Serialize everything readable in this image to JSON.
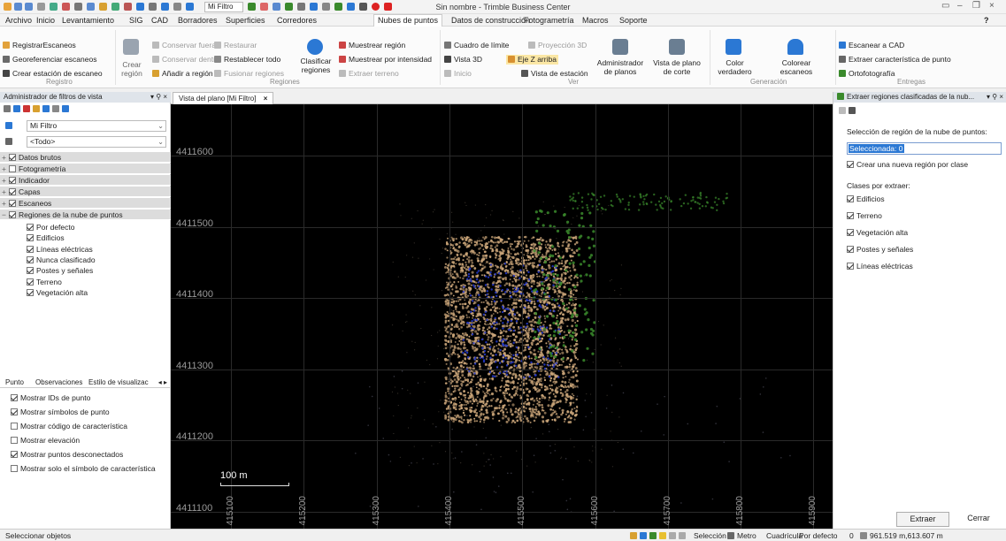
{
  "app": {
    "title": "Sin nombre - Trimble Business Center",
    "qat_filter": "Mi Filtro",
    "help": "?"
  },
  "menu": [
    "Archivo",
    "Inicio",
    "Levantamiento",
    "SIG",
    "CAD",
    "Borradores",
    "Superficies",
    "Corredores",
    "Nubes de puntos",
    "Datos de construcción",
    "Fotogrametría",
    "Macros",
    "Soporte"
  ],
  "menu_active": "Nubes de puntos",
  "ribbon": {
    "registro": {
      "label": "Registro",
      "items": [
        "RegistrarEscaneos",
        "Georeferenciar escaneos",
        "Crear estación de escaneo"
      ]
    },
    "regiones": {
      "label": "Regiones",
      "crear": "Crear región",
      "conservar_fuera": "Conservar fuera",
      "restaurar": "Restaurar",
      "conservar_dentro": "Conservar dentro",
      "restablecer": "Restablecer todo",
      "anadir": "Añadir a región",
      "fusionar": "Fusionar regiones",
      "clasificar": "Clasificar regiones",
      "muestrear_region": "Muestrear región",
      "muestrear_intensidad": "Muestrear por intensidad",
      "extraer_terreno": "Extraer terreno"
    },
    "ver": {
      "label": "Ver",
      "cuadro": "Cuadro de límite",
      "proyeccion": "Proyección 3D",
      "vista3d": "Vista 3D",
      "eje_z": "Eje Z arriba",
      "inicio": "Inicio",
      "vista_estacion": "Vista de estación",
      "admin": "Administrador de planos",
      "vista_plano": "Vista de plano de corte"
    },
    "generacion": {
      "label": "Generación",
      "color": "Color verdadero",
      "colorear": "Colorear escaneos"
    },
    "entregas": {
      "label": "Entregas",
      "escanear": "Escanear a CAD",
      "extraer": "Extraer característica de punto",
      "orto": "Ortofotografía"
    }
  },
  "left_panel": {
    "title": "Administrador de filtros de vista",
    "filter_value": "Mi Filtro",
    "todo_value": "<Todo>",
    "groups": [
      "Datos brutos",
      "Fotogrametría",
      "Indicador",
      "Capas",
      "Escaneos",
      "Regiones de la nube de puntos"
    ],
    "groups_checked": [
      true,
      false,
      true,
      true,
      true,
      true
    ],
    "regions": [
      "Por defecto",
      "Edificios",
      "Líneas eléctricas",
      "Nunca clasificado",
      "Postes y señales",
      "Terreno",
      "Vegetación alta"
    ],
    "tabs": [
      "Punto",
      "Observaciones",
      "Estilo de visualizac"
    ],
    "options": [
      {
        "label": "Mostrar IDs de punto",
        "checked": true
      },
      {
        "label": "Mostrar símbolos de punto",
        "checked": true
      },
      {
        "label": "Mostrar código de característica",
        "checked": false
      },
      {
        "label": "Mostrar elevación",
        "checked": false
      },
      {
        "label": "Mostrar puntos desconectados",
        "checked": true
      },
      {
        "label": "Mostrar solo el símbolo de característica",
        "checked": false
      }
    ]
  },
  "viewport": {
    "tab": "Vista del plano [Mi Filtro]",
    "y_labels": [
      "4411600",
      "4411500",
      "4411400",
      "4411300",
      "4411200",
      "4411100"
    ],
    "x_labels": [
      "415100",
      "415200",
      "415300",
      "415400",
      "415500",
      "415600",
      "415700",
      "415800",
      "415900"
    ],
    "scale": "100 m"
  },
  "right_panel": {
    "title": "Extraer regiones clasificadas de la nub...",
    "selection_label": "Selección de región de la nube de puntos:",
    "selection_value": "Seleccionada: 0",
    "create_new": "Crear una nueva región por clase",
    "classes_label": "Clases por extraer:",
    "classes": [
      "Edificios",
      "Terreno",
      "Vegetación alta",
      "Postes y señales",
      "Líneas eléctricas"
    ],
    "extract_btn": "Extraer",
    "close_btn": "Cerrar"
  },
  "status": {
    "left": "Seleccionar objetos",
    "mode": "Selección",
    "unit": "Metro",
    "grid": "Cuadrícula",
    "default": "Por defecto",
    "count": "0",
    "coords": "961.519 m,613.607 m"
  },
  "colors": {
    "accent": "#2b78d4",
    "tan": "#c9a478",
    "veg": "#3a8a2c",
    "blue": "#2437c8"
  }
}
